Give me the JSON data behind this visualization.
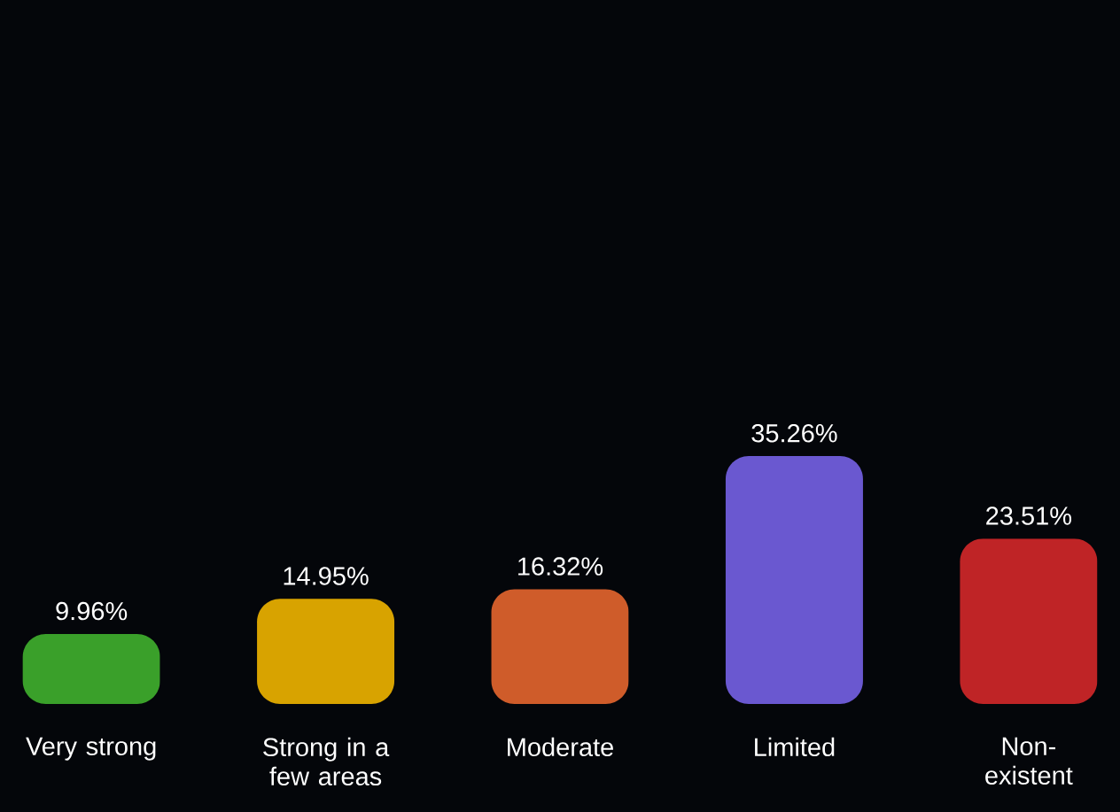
{
  "chart_data": {
    "type": "bar",
    "categories": [
      "Very strong",
      "Strong in a few areas",
      "Moderate",
      "Limited",
      "Non-existent"
    ],
    "values": [
      9.96,
      14.95,
      16.32,
      35.26,
      23.51
    ],
    "value_labels": [
      "9.96%",
      "14.95%",
      "16.32%",
      "35.26%",
      "23.51%"
    ],
    "colors": [
      "#3aa02a",
      "#d8a300",
      "#cf5c2a",
      "#6a58d0",
      "#bf2426"
    ],
    "ylim": [
      0,
      100
    ],
    "tick_labels": "x"
  }
}
